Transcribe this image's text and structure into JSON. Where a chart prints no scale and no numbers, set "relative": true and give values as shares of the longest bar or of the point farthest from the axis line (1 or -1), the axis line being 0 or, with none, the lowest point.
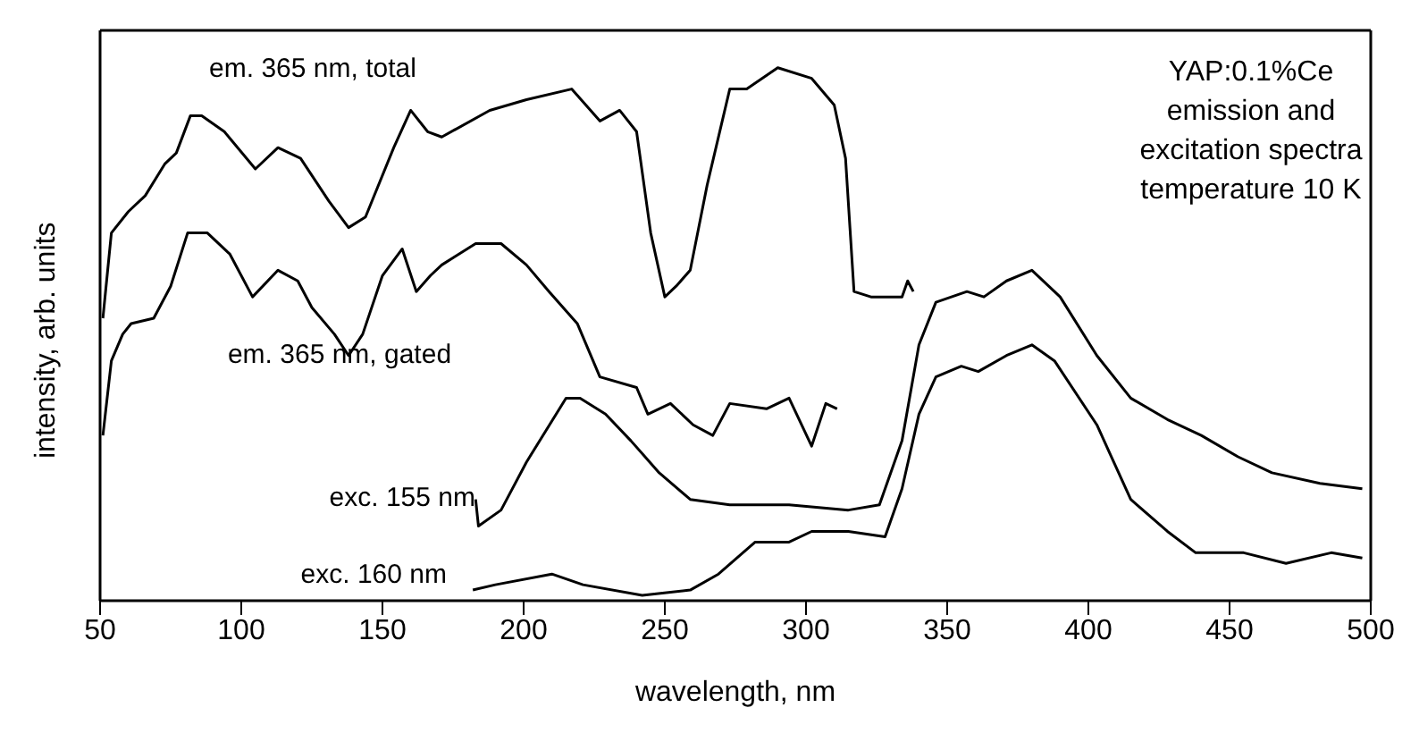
{
  "chart_data": {
    "type": "line",
    "relative": true,
    "xlabel": "wavelength, nm",
    "ylabel": "intensity, arb. units",
    "xlim": [
      50,
      500
    ],
    "xticks": [
      50,
      100,
      150,
      200,
      250,
      300,
      350,
      400,
      450,
      500
    ],
    "annotations": [
      "YAP:0.1%Ce\nemission and\nexcitation spectra\ntemperature 10 K"
    ],
    "series": [
      {
        "name": "em. 365 nm, total",
        "color": "#000000",
        "x": [
          51,
          54,
          60,
          66,
          73,
          77,
          82,
          86,
          94,
          105,
          113,
          121,
          131,
          138,
          144,
          154,
          160,
          166,
          171,
          188,
          201,
          217,
          227,
          234,
          240,
          245,
          250,
          254,
          259,
          265,
          273,
          279,
          290,
          302,
          310,
          314,
          317,
          323,
          334,
          336,
          338
        ],
        "values": [
          0.53,
          0.69,
          0.73,
          0.76,
          0.82,
          0.84,
          0.91,
          0.91,
          0.88,
          0.81,
          0.85,
          0.83,
          0.75,
          0.7,
          0.72,
          0.85,
          0.92,
          0.88,
          0.87,
          0.92,
          0.94,
          0.96,
          0.9,
          0.92,
          0.88,
          0.69,
          0.57,
          0.59,
          0.62,
          0.78,
          0.96,
          0.96,
          1.0,
          0.98,
          0.93,
          0.83,
          0.58,
          0.57,
          0.57,
          0.6,
          0.58
        ]
      },
      {
        "name": "em. 365 nm, gated",
        "color": "#000000",
        "x": [
          51,
          54,
          58,
          61,
          69,
          75,
          81,
          88,
          96,
          104,
          113,
          120,
          125,
          133,
          138,
          143,
          150,
          157,
          162,
          167,
          171,
          183,
          192,
          201,
          209,
          219,
          227,
          240,
          244,
          252,
          260,
          267,
          273,
          286,
          294,
          302,
          307,
          311
        ],
        "values": [
          0.31,
          0.45,
          0.5,
          0.52,
          0.53,
          0.59,
          0.69,
          0.69,
          0.65,
          0.57,
          0.62,
          0.6,
          0.55,
          0.5,
          0.46,
          0.5,
          0.61,
          0.66,
          0.58,
          0.61,
          0.63,
          0.67,
          0.67,
          0.63,
          0.58,
          0.52,
          0.42,
          0.4,
          0.35,
          0.37,
          0.33,
          0.31,
          0.37,
          0.36,
          0.38,
          0.29,
          0.37,
          0.36
        ]
      },
      {
        "name": "exc. 155 nm",
        "color": "#000000",
        "x": [
          183,
          184,
          192,
          201,
          215,
          220,
          229,
          238,
          248,
          259,
          273,
          294,
          315,
          326,
          334,
          340,
          346,
          357,
          363,
          371,
          380,
          390,
          403,
          415,
          428,
          440,
          453,
          465,
          482,
          497
        ],
        "values": [
          0.19,
          0.14,
          0.17,
          0.26,
          0.38,
          0.38,
          0.35,
          0.3,
          0.24,
          0.19,
          0.18,
          0.18,
          0.17,
          0.18,
          0.3,
          0.48,
          0.56,
          0.58,
          0.57,
          0.6,
          0.62,
          0.57,
          0.46,
          0.38,
          0.34,
          0.31,
          0.27,
          0.24,
          0.22,
          0.21
        ]
      },
      {
        "name": "exc. 160 nm",
        "color": "#000000",
        "x": [
          182,
          190,
          210,
          221,
          242,
          259,
          269,
          282,
          294,
          302,
          315,
          328,
          334,
          340,
          346,
          355,
          361,
          371,
          380,
          388,
          403,
          415,
          428,
          438,
          455,
          470,
          486,
          497
        ],
        "values": [
          0.02,
          0.03,
          0.05,
          0.03,
          0.01,
          0.02,
          0.05,
          0.11,
          0.11,
          0.13,
          0.13,
          0.12,
          0.21,
          0.35,
          0.42,
          0.44,
          0.43,
          0.46,
          0.48,
          0.45,
          0.33,
          0.19,
          0.13,
          0.09,
          0.09,
          0.07,
          0.09,
          0.08
        ]
      }
    ]
  }
}
